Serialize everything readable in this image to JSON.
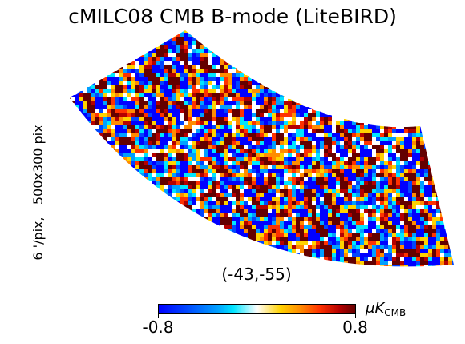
{
  "chart_data": {
    "type": "heatmap",
    "title": "cMILC08 CMB B-mode (LiteBIRD)",
    "side_label": "6 '/pix,   500x300 pix",
    "center_label": "(-43,-55)",
    "colorbar": {
      "min": -0.8,
      "max": 0.8,
      "min_label": "-0.8",
      "max_label": "0.8",
      "unit_prefix": "μK",
      "unit_sub": "CMB",
      "colormap": [
        "#0000ff",
        "#0046ff",
        "#00a0ff",
        "#00e5ff",
        "#ffffff",
        "#ffd200",
        "#ff8c00",
        "#ff3200",
        "#b40000",
        "#640000"
      ]
    }
  }
}
